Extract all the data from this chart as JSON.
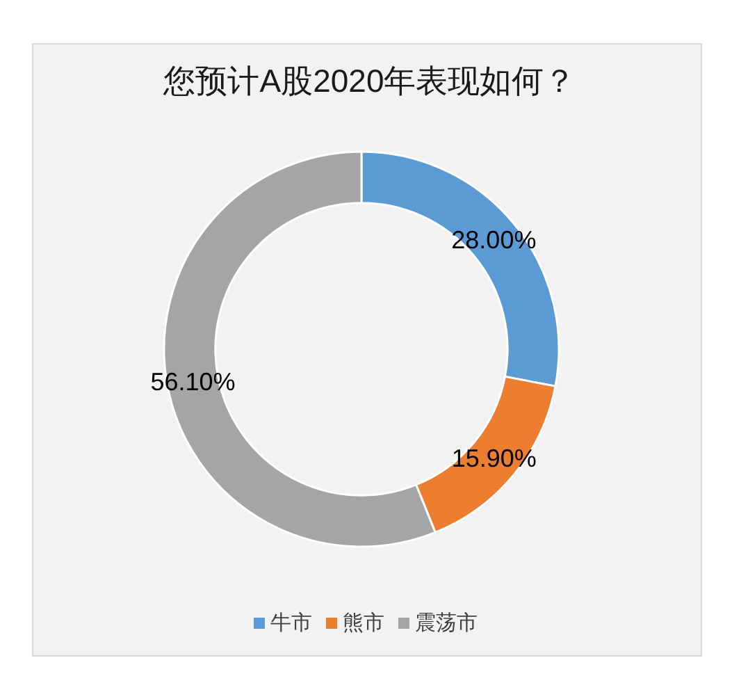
{
  "chart_data": {
    "type": "donut",
    "title": "您预计A股2020年表现如何？",
    "categories": [
      "牛市",
      "熊市",
      "震荡市"
    ],
    "values": [
      28.0,
      15.9,
      56.1
    ],
    "colors": [
      "#5b9bd5",
      "#ed7d31",
      "#a5a5a5"
    ],
    "value_labels": [
      "28.00%",
      "15.90%",
      "56.10%"
    ],
    "legend": "bottom"
  }
}
